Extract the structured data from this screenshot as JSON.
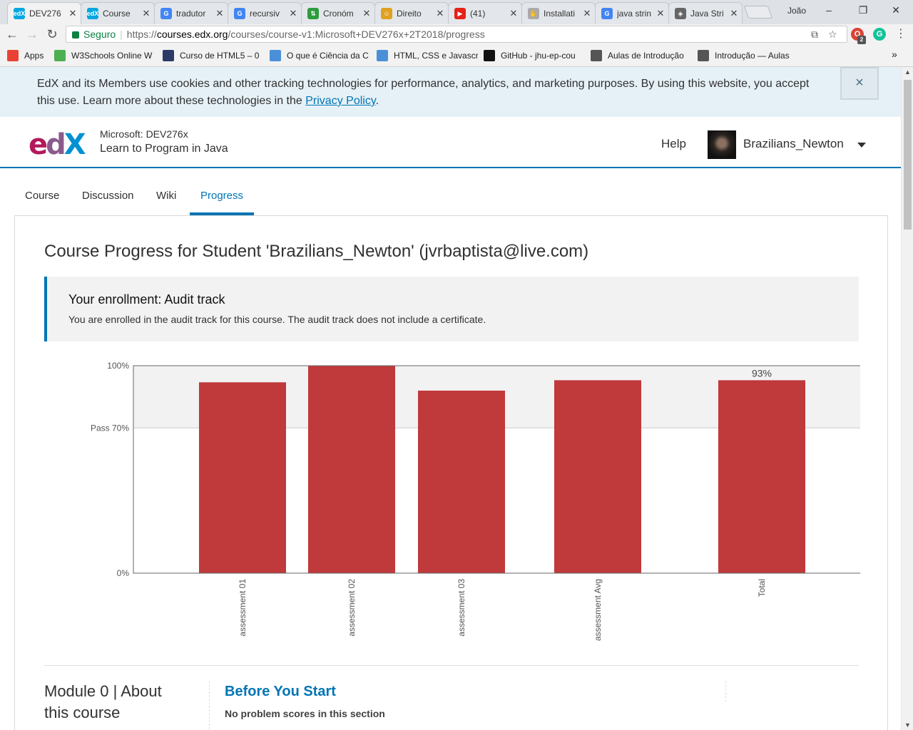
{
  "browser": {
    "tabs": [
      {
        "title": "DEV276",
        "fav": "edX",
        "color": "#02a6e0",
        "active": true
      },
      {
        "title": "Course",
        "fav": "edX",
        "color": "#02a6e0",
        "active": false
      },
      {
        "title": "tradutor",
        "fav": "G",
        "color": "#4285f4",
        "active": false
      },
      {
        "title": "recursiv",
        "fav": "G",
        "color": "#4285f4",
        "active": false
      },
      {
        "title": "Cronóm",
        "fav": "⇅",
        "color": "#2e9c3e",
        "active": false
      },
      {
        "title": "Direito",
        "fav": "☺",
        "color": "#e0a020",
        "active": false
      },
      {
        "title": "(41)",
        "fav": "▶",
        "color": "#e62117",
        "active": false
      },
      {
        "title": "Installati",
        "fav": "✋",
        "color": "#aaaaaa",
        "active": false
      },
      {
        "title": "java strin",
        "fav": "G",
        "color": "#4285f4",
        "active": false
      },
      {
        "title": "Java Stri",
        "fav": "◈",
        "color": "#666666",
        "active": false
      }
    ],
    "profile_name": "João",
    "address": {
      "secure_label": "Seguro",
      "scheme": "https://",
      "host": "courses.edx.org",
      "path": "/courses/course-v1:Microsoft+DEV276x+2T2018/progress"
    },
    "extension_badge": "2",
    "bookmarks": [
      {
        "label": "Apps",
        "icon": "apps-grid-icon",
        "color": "#e94235"
      },
      {
        "label": "W3Schools Online W",
        "icon": "w3schools-icon",
        "color": "#4caf50"
      },
      {
        "label": "Curso de HTML5 – 0",
        "icon": "course-icon",
        "color": "#2b3a67"
      },
      {
        "label": "O que é Ciência da C",
        "icon": "link-icon",
        "color": "#4a90d9"
      },
      {
        "label": "HTML, CSS e Javascr",
        "icon": "link-icon",
        "color": "#4a90d9"
      },
      {
        "label": "GitHub - jhu-ep-cou",
        "icon": "github-icon",
        "color": "#111111"
      },
      {
        "label": "Aulas de Introdução",
        "icon": "w3c-icon",
        "color": "#555555"
      },
      {
        "label": "Introdução — Aulas",
        "icon": "w3c-icon",
        "color": "#555555"
      }
    ]
  },
  "cookie": {
    "text": "EdX and its Members use cookies and other tracking technologies for performance, analytics, and marketing purposes. By using this website, you accept this use. Learn more about these technologies in the ",
    "link": "Privacy Policy",
    "after": ".",
    "close": "×"
  },
  "header": {
    "logo": {
      "e": "e",
      "d": "d",
      "x": "X"
    },
    "course_org": "Microsoft: DEV276x",
    "course_name": "Learn to Program in Java",
    "help": "Help",
    "username": "Brazilians_Newton"
  },
  "course_tabs": [
    "Course",
    "Discussion",
    "Wiki",
    "Progress"
  ],
  "progress": {
    "title": "Course Progress for Student 'Brazilians_Newton' (jvrbaptista@live.com)",
    "enrollment_heading": "Your enrollment: Audit track",
    "enrollment_text": "You are enrolled in the audit track for this course. The audit track does not include a certificate."
  },
  "chart_data": {
    "type": "bar",
    "categories": [
      "assessment 01",
      "assessment 02",
      "assessment 03",
      "assessment Avg",
      "Total"
    ],
    "values": [
      92,
      100,
      88,
      93,
      93
    ],
    "bar_color": "#c0393b",
    "ylim": [
      0,
      100
    ],
    "ytick_labels": [
      "100%",
      "Pass 70%",
      "0%"
    ],
    "pass_mark": 70,
    "value_labels": [
      {
        "category": "Total",
        "label": "93%"
      }
    ]
  },
  "modules": [
    {
      "title": "Module 0 | About this course",
      "section_title": "Before You Start",
      "section_note": "No problem scores in this section"
    }
  ]
}
